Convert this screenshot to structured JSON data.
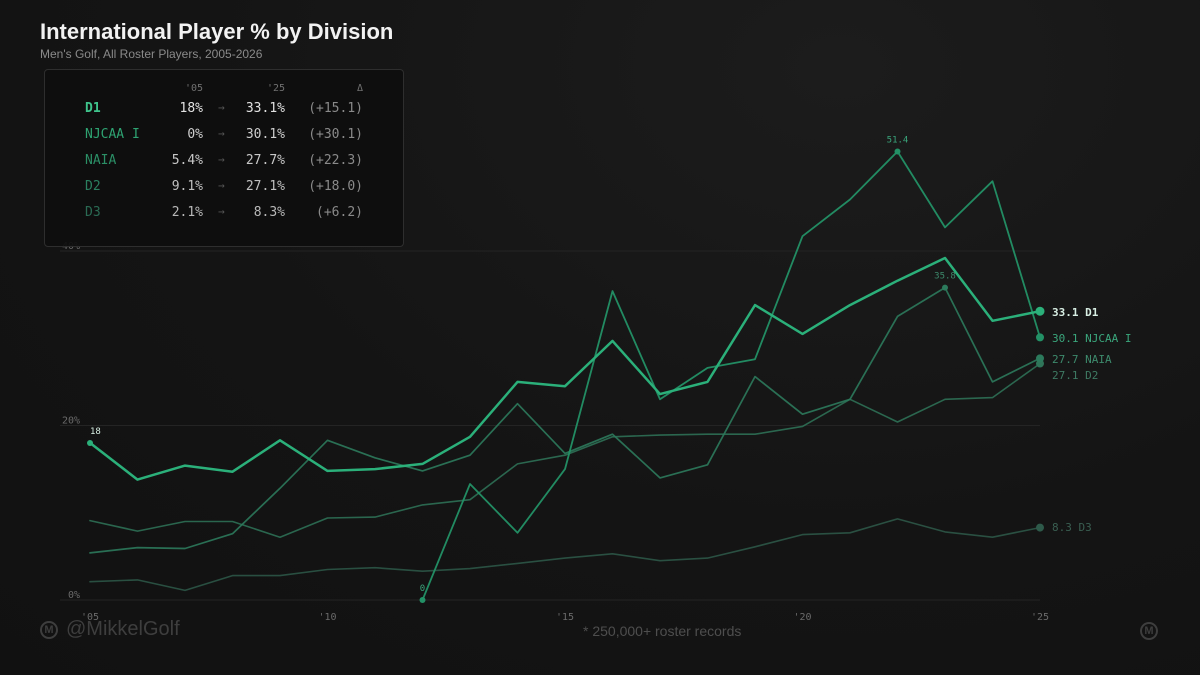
{
  "chart_data": {
    "type": "line",
    "title": "International Player % by Division",
    "subtitle": "Men's Golf, All Roster Players, 2005-2026",
    "x": [
      2005,
      2006,
      2007,
      2008,
      2009,
      2010,
      2011,
      2012,
      2013,
      2014,
      2015,
      2016,
      2017,
      2018,
      2019,
      2020,
      2021,
      2022,
      2023,
      2024,
      2025
    ],
    "xticks": [
      2005,
      2010,
      2015,
      2020,
      2025
    ],
    "xtick_labels": [
      "'05",
      "'10",
      "'15",
      "'20",
      "'25"
    ],
    "ylim": [
      0,
      40
    ],
    "yticks": [
      0,
      20,
      40
    ],
    "ytick_labels": [
      "0%",
      "20%",
      "40%"
    ],
    "series": [
      {
        "name": "D3",
        "color": "#2e5a4a",
        "opacity": 0.85,
        "width": 1.6,
        "end_label": "8.3 D3",
        "label_color": "#3a5f52",
        "values": [
          2.1,
          2.3,
          1.1,
          2.8,
          2.8,
          3.5,
          3.7,
          3.3,
          3.6,
          4.2,
          4.8,
          5.3,
          4.5,
          4.8,
          6.1,
          7.5,
          7.7,
          9.3,
          7.8,
          7.2,
          8.3
        ]
      },
      {
        "name": "D2",
        "color": "#2f7559",
        "opacity": 0.85,
        "width": 1.6,
        "end_label": "27.1 D2",
        "label_color": "#3e7a63",
        "values": [
          9.1,
          7.9,
          9.0,
          9.0,
          7.2,
          9.4,
          9.5,
          10.9,
          11.5,
          15.6,
          16.6,
          18.7,
          18.9,
          19.0,
          19.0,
          19.9,
          23.0,
          20.4,
          23.0,
          23.2,
          27.1
        ]
      },
      {
        "name": "NAIA",
        "color": "#2c7a5c",
        "opacity": 0.9,
        "width": 1.7,
        "end_label": "27.7 NAIA",
        "label_color": "#3d8a6c",
        "values": [
          5.4,
          6.0,
          5.9,
          7.6,
          12.8,
          18.3,
          16.3,
          14.8,
          16.6,
          22.5,
          16.8,
          19.0,
          14.0,
          15.5,
          25.6,
          21.3,
          23.0,
          32.5,
          35.8,
          25.0,
          27.7
        ]
      },
      {
        "name": "NJCAA I",
        "color": "#239166",
        "opacity": 0.95,
        "width": 1.8,
        "end_label": "30.1 NJCAA I",
        "label_color": "#3aa67c",
        "values": [
          null,
          null,
          null,
          null,
          null,
          null,
          null,
          0,
          13.3,
          7.7,
          15.0,
          35.4,
          23.0,
          26.6,
          27.6,
          41.7,
          45.9,
          51.4,
          42.7,
          48.0,
          30.1
        ]
      },
      {
        "name": "D1",
        "color": "#2bb07a",
        "opacity": 1,
        "width": 2.5,
        "end_label": "33.1 D1",
        "label_color": "#d8efe4",
        "values": [
          18,
          13.8,
          15.4,
          14.7,
          18.3,
          14.8,
          15.0,
          15.6,
          18.7,
          25.0,
          24.5,
          29.7,
          23.6,
          25.0,
          33.8,
          30.5,
          33.8,
          36.6,
          39.2,
          32.0,
          33.1
        ]
      }
    ],
    "annotations": [
      {
        "series": "D1",
        "year": 2005,
        "text": "18"
      },
      {
        "series": "NJCAA I",
        "year": 2012,
        "text": "0"
      },
      {
        "series": "NJCAA I",
        "year": 2022,
        "text": "51.4"
      },
      {
        "series": "NAIA",
        "year": 2023,
        "text": "35.8"
      }
    ]
  },
  "table": {
    "headers": {
      "y05": "'05",
      "y25": "'25",
      "delta": "Δ"
    },
    "arrow": "→",
    "rows": [
      {
        "name": "D1",
        "v05": "18%",
        "v25": "33.1%",
        "delta": "(+15.1)",
        "color": "#3fc48c",
        "valcolor": "#e2e2e2",
        "bold": true
      },
      {
        "name": "NJCAA I",
        "v05": "0%",
        "v25": "30.1%",
        "delta": "(+30.1)",
        "color": "#2ea372",
        "valcolor": "#cfcfcf",
        "bold": false
      },
      {
        "name": "NAIA",
        "v05": "5.4%",
        "v25": "27.7%",
        "delta": "(+22.3)",
        "color": "#2b8f66",
        "valcolor": "#c8c8c8",
        "bold": false
      },
      {
        "name": "D2",
        "v05": "9.1%",
        "v25": "27.1%",
        "delta": "(+18.0)",
        "color": "#2b8060",
        "valcolor": "#c0c0c0",
        "bold": false
      },
      {
        "name": "D3",
        "v05": "2.1%",
        "v25": "8.3%",
        "delta": "(+6.2)",
        "color": "#2a6b54",
        "valcolor": "#b8b8b8",
        "bold": false
      }
    ]
  },
  "watermark": "@MikkelGolf",
  "logo_letter": "M",
  "footnote": "* 250,000+ roster records"
}
